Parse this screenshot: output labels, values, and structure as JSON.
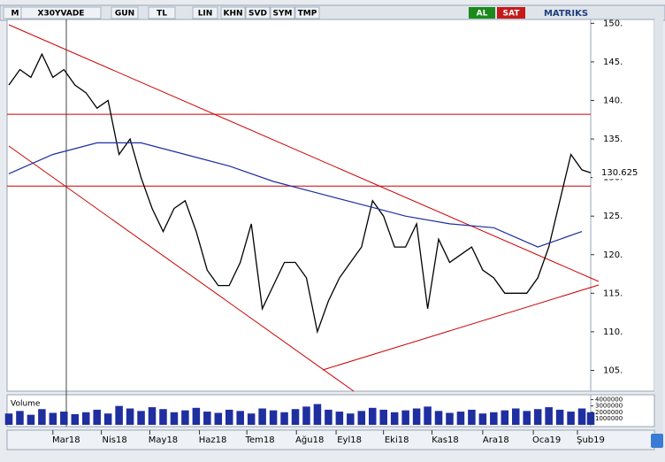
{
  "toolbar": {
    "symbol_menu": "M",
    "symbol": "X30YVADE",
    "period": "GUN",
    "currency": "TL",
    "scale": "LIN",
    "buttons": [
      "KHN",
      "SVD",
      "SYM",
      "TMP"
    ],
    "buy": "AL",
    "sell": "SAT",
    "brand": "MATRIKS"
  },
  "chart_data": {
    "type": "line",
    "x": [
      0,
      1,
      2,
      3,
      4,
      5,
      6,
      7,
      8,
      9,
      10,
      11,
      12,
      13,
      14,
      15,
      16,
      17,
      18,
      19,
      20,
      21,
      22,
      23,
      24,
      25,
      26,
      27,
      28,
      29,
      30,
      31,
      32,
      33,
      34,
      35,
      36,
      37,
      38,
      39,
      40,
      41,
      42,
      43,
      44,
      45,
      46,
      47,
      48,
      49,
      50,
      51,
      52,
      52.8
    ],
    "series": [
      {
        "color": "#000000",
        "values": [
          142,
          144,
          143,
          146,
          143,
          144,
          142,
          141,
          139,
          140,
          133,
          135,
          130,
          126,
          123,
          126,
          127,
          123,
          118,
          116,
          116,
          119,
          124,
          113,
          116,
          119,
          119,
          117,
          110,
          114,
          117,
          119,
          121,
          127,
          125,
          121,
          121,
          124,
          113,
          122,
          119,
          120,
          121,
          118,
          117,
          115,
          115,
          115,
          117,
          121,
          127,
          133,
          131,
          130.625
        ]
      }
    ],
    "moving_average": {
      "color": "#1f2f9f",
      "x": [
        0,
        4,
        8,
        12,
        16,
        20,
        24,
        28,
        32,
        36,
        40,
        44,
        48,
        52
      ],
      "values": [
        130.5,
        133,
        134.5,
        134.5,
        133,
        131.5,
        129.5,
        128,
        126.5,
        125,
        124,
        123.5,
        121,
        123
      ]
    },
    "last_value": 130.625,
    "hlines": [
      138.2,
      128.9
    ],
    "hline_color": "#cc0000",
    "xlim": [
      0,
      52.8
    ],
    "xticks": [
      {
        "value": 5.2,
        "label": "Mar18"
      },
      {
        "value": 9.6,
        "label": "Nis18"
      },
      {
        "value": 14.0,
        "label": "May18"
      },
      {
        "value": 18.5,
        "label": "Haz18"
      },
      {
        "value": 22.8,
        "label": "Tem18"
      },
      {
        "value": 27.3,
        "label": "Ağu18"
      },
      {
        "value": 30.9,
        "label": "Eyl18"
      },
      {
        "value": 35.2,
        "label": "Eki18"
      },
      {
        "value": 39.6,
        "label": "Kas18"
      },
      {
        "value": 44.2,
        "label": "Ara18"
      },
      {
        "value": 48.8,
        "label": "Oca19"
      },
      {
        "value": 52.8,
        "label": "Şub19"
      }
    ],
    "ylim": [
      102.3,
      150.5
    ],
    "yticks": [
      {
        "value": 105,
        "label": "105."
      },
      {
        "value": 110,
        "label": "110."
      },
      {
        "value": 115,
        "label": "115."
      },
      {
        "value": 120,
        "label": "120."
      },
      {
        "value": 125,
        "label": "125."
      },
      {
        "value": 130,
        "label": "130."
      },
      {
        "value": 135,
        "label": "135."
      },
      {
        "value": 140,
        "label": "140."
      },
      {
        "value": 145,
        "label": "145."
      },
      {
        "value": 150,
        "label": "150."
      }
    ],
    "volume": {
      "title": "Volume",
      "color": "#1f2f9f",
      "values": [
        1800000,
        2200000,
        1600000,
        2500000,
        1900000,
        2100000,
        1700000,
        2000000,
        2400000,
        1800000,
        3000000,
        2600000,
        2200000,
        2800000,
        2500000,
        2000000,
        2300000,
        2700000,
        2100000,
        1900000,
        2400000,
        2200000,
        1800000,
        2600000,
        2300000,
        2000000,
        2500000,
        2900000,
        3300000,
        2400000,
        2100000,
        1800000,
        2200000,
        2700000,
        2400000,
        2000000,
        2300000,
        2600000,
        2900000,
        2200000,
        1900000,
        2100000,
        2400000,
        1800000,
        2000000,
        2300000,
        2600000,
        2200000,
        2500000,
        2800000,
        2400000,
        2100000,
        2600000,
        2000000
      ],
      "ylim": [
        0,
        4500000
      ],
      "yticks": [
        1000000,
        2000000,
        3000000,
        4000000
      ]
    }
  }
}
